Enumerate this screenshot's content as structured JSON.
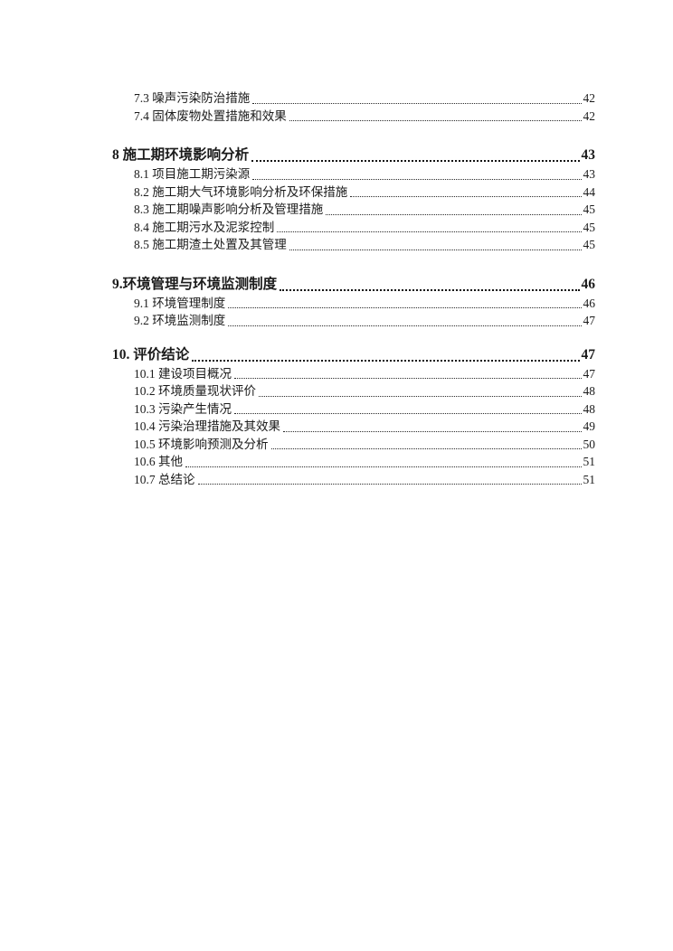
{
  "toc": {
    "groups": [
      {
        "items": [
          {
            "label": "7.3 噪声污染防治措施",
            "page": "42"
          },
          {
            "label": "7.4 固体废物处置措施和效果",
            "page": "42"
          }
        ]
      },
      {
        "heading": {
          "label": "8 施工期环境影响分析",
          "page": "43"
        },
        "items": [
          {
            "label": "8.1 项目施工期污染源",
            "page": "43"
          },
          {
            "label": "8.2 施工期大气环境影响分析及环保措施",
            "page": "44"
          },
          {
            "label": "8.3 施工期噪声影响分析及管理措施",
            "page": "45"
          },
          {
            "label": "8.4 施工期污水及泥浆控制",
            "page": "45"
          },
          {
            "label": "8.5 施工期渣土处置及其管理",
            "page": "45"
          }
        ]
      },
      {
        "heading": {
          "label": "9.环境管理与环境监测制度",
          "page": "46"
        },
        "items": [
          {
            "label": "9.1 环境管理制度",
            "page": "46"
          },
          {
            "label": "9.2 环境监测制度",
            "page": "47"
          }
        ]
      },
      {
        "heading": {
          "label": "10. 评价结论",
          "page": "47"
        },
        "items": [
          {
            "label": "10.1 建设项目概况",
            "page": "47"
          },
          {
            "label": "10.2 环境质量现状评价",
            "page": "48"
          },
          {
            "label": "10.3 污染产生情况",
            "page": "48"
          },
          {
            "label": "10.4 污染治理措施及其效果",
            "page": "49"
          },
          {
            "label": "10.5 环境影响预测及分析",
            "page": "50"
          },
          {
            "label": "10.6 其他",
            "page": "51"
          },
          {
            "label": "10.7 总结论",
            "page": "51"
          }
        ]
      }
    ]
  }
}
